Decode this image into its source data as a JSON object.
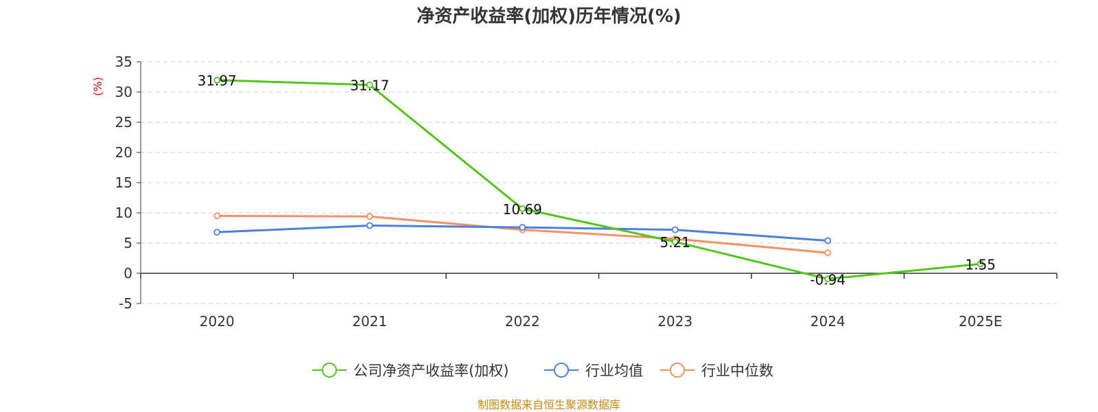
{
  "chart_data": {
    "type": "line",
    "title": "净资产收益率(加权)历年情况(%)",
    "ylabel": "(%)",
    "categories": [
      "2020",
      "2021",
      "2022",
      "2023",
      "2024",
      "2025E"
    ],
    "ylim": [
      -5,
      35
    ],
    "yticks": [
      35,
      30,
      25,
      20,
      15,
      10,
      5,
      0,
      -5
    ],
    "grid": true,
    "legend_position": "bottom",
    "series": [
      {
        "name": "公司净资产收益率(加权)",
        "color": "#52c41a",
        "values": [
          31.97,
          31.17,
          10.69,
          5.21,
          -0.94,
          1.55
        ],
        "labels": [
          "31.97",
          "31.17",
          "10.69",
          "5.21",
          "-0.94",
          "1.55"
        ]
      },
      {
        "name": "行业均值",
        "color": "#4a7fe0",
        "values": [
          6.8,
          7.9,
          7.6,
          7.2,
          5.4,
          null
        ]
      },
      {
        "name": "行业中位数",
        "color": "#f59064",
        "values": [
          9.5,
          9.4,
          7.2,
          5.7,
          3.4,
          null
        ]
      }
    ],
    "source": "制图数据来自恒生聚源数据库"
  }
}
